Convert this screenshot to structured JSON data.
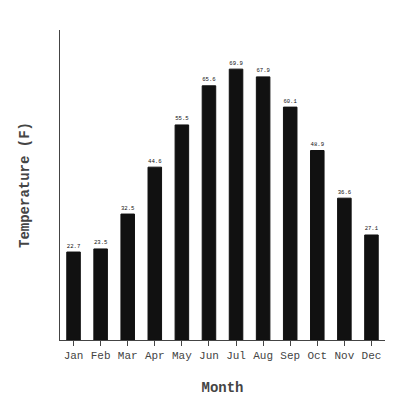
{
  "chart_data": {
    "type": "bar",
    "xlabel": "Month",
    "ylabel": "Temperature (F)",
    "categories": [
      "Jan",
      "Feb",
      "Mar",
      "Apr",
      "May",
      "Jun",
      "Jul",
      "Aug",
      "Sep",
      "Oct",
      "Nov",
      "Dec"
    ],
    "values": [
      22.7,
      23.5,
      32.5,
      44.6,
      55.5,
      65.6,
      69.9,
      67.9,
      60.1,
      48.9,
      36.6,
      27.1
    ],
    "color": "#111111",
    "ylim": [
      0,
      80
    ],
    "data_labels": true,
    "tick_labels": "x",
    "grid": false
  }
}
